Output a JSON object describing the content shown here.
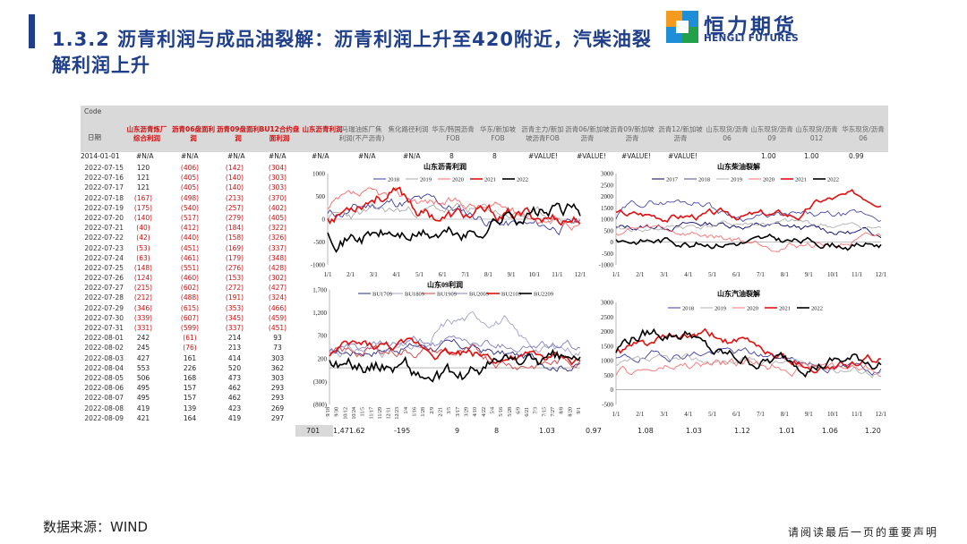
{
  "header": {
    "title": "1.3.2 沥青利润与成品油裂解：沥青利润上升至420附近，汽柴油裂解利润上升",
    "logo_cn": "恒力期货",
    "logo_en": "HENGLI FUTURES"
  },
  "table": {
    "code_label": "Code",
    "date_label": "日期",
    "columns": [
      {
        "label": "山东沥青炼厂综合利润",
        "color": "red"
      },
      {
        "label": "沥青06盘面利润",
        "color": "red"
      },
      {
        "label": "沥青09盘面利润",
        "color": "red"
      },
      {
        "label": "BU12合约盘面利润",
        "color": "red"
      },
      {
        "label": "山东沥青利润",
        "color": "red"
      },
      {
        "label": "马瑞油炼厂焦利润(不产沥青)",
        "color": "gray"
      },
      {
        "label": "焦化路径利润",
        "color": "gray"
      },
      {
        "label": "华东/韩国沥青FOB",
        "color": "gray"
      },
      {
        "label": "华东/新加坡FOB",
        "color": "gray"
      },
      {
        "label": "沥青主力/新加坡沥青FOB",
        "color": "gray"
      },
      {
        "label": "沥青06/新加坡沥青",
        "color": "gray"
      },
      {
        "label": "沥青09/新加坡沥青",
        "color": "gray"
      },
      {
        "label": "沥青12/新加坡沥青",
        "color": "gray"
      },
      {
        "label": "山东现货/沥青06",
        "color": "gray"
      },
      {
        "label": "山东现货/沥青09",
        "color": "gray"
      },
      {
        "label": "山东现货/沥青012",
        "color": "gray"
      },
      {
        "label": "华东现货/沥青06",
        "color": "gray"
      }
    ],
    "init_row": {
      "date": "2014-01-01",
      "values": [
        "#N/A",
        "#N/A",
        "#N/A",
        "#N/A",
        "#N/A",
        "#N/A",
        "#N/A",
        "8",
        "8",
        "#VALUE!",
        "#VALUE!",
        "#VALUE!",
        "#VALUE!",
        "1.00",
        "1.00",
        "0.99"
      ]
    },
    "rows": [
      {
        "date": "2022-07-15",
        "v": [
          "120",
          "(406)",
          "(142)",
          "(304)"
        ]
      },
      {
        "date": "2022-07-16",
        "v": [
          "121",
          "(405)",
          "(140)",
          "(303)"
        ]
      },
      {
        "date": "2022-07-17",
        "v": [
          "121",
          "(405)",
          "(140)",
          "(303)"
        ]
      },
      {
        "date": "2022-07-18",
        "v": [
          "(167)",
          "(498)",
          "(213)",
          "(370)"
        ]
      },
      {
        "date": "2022-07-19",
        "v": [
          "(175)",
          "(540)",
          "(257)",
          "(402)"
        ]
      },
      {
        "date": "2022-07-20",
        "v": [
          "(140)",
          "(517)",
          "(279)",
          "(405)"
        ]
      },
      {
        "date": "2022-07-21",
        "v": [
          "(40)",
          "(412)",
          "(184)",
          "(322)"
        ]
      },
      {
        "date": "2022-07-22",
        "v": [
          "(42)",
          "(440)",
          "(158)",
          "(326)"
        ]
      },
      {
        "date": "2022-07-23",
        "v": [
          "(53)",
          "(451)",
          "(169)",
          "(337)"
        ]
      },
      {
        "date": "2022-07-24",
        "v": [
          "(63)",
          "(461)",
          "(179)",
          "(348)"
        ]
      },
      {
        "date": "2022-07-25",
        "v": [
          "(148)",
          "(551)",
          "(276)",
          "(428)"
        ]
      },
      {
        "date": "2022-07-26",
        "v": [
          "(124)",
          "(460)",
          "(153)",
          "(302)"
        ]
      },
      {
        "date": "2022-07-27",
        "v": [
          "(215)",
          "(602)",
          "(272)",
          "(427)"
        ]
      },
      {
        "date": "2022-07-28",
        "v": [
          "(212)",
          "(488)",
          "(191)",
          "(324)"
        ]
      },
      {
        "date": "2022-07-29",
        "v": [
          "(346)",
          "(615)",
          "(353)",
          "(466)"
        ]
      },
      {
        "date": "2022-07-30",
        "v": [
          "(339)",
          "(607)",
          "(345)",
          "(459)"
        ]
      },
      {
        "date": "2022-07-31",
        "v": [
          "(331)",
          "(599)",
          "(337)",
          "(451)"
        ]
      },
      {
        "date": "2022-08-01",
        "v": [
          "242",
          "(61)",
          "214",
          "93"
        ]
      },
      {
        "date": "2022-08-02",
        "v": [
          "245",
          "(76)",
          "213",
          "73"
        ]
      },
      {
        "date": "2022-08-03",
        "v": [
          "427",
          "161",
          "414",
          "303"
        ]
      },
      {
        "date": "2022-08-04",
        "v": [
          "553",
          "226",
          "520",
          "362"
        ]
      },
      {
        "date": "2022-08-05",
        "v": [
          "506",
          "168",
          "473",
          "303"
        ]
      },
      {
        "date": "2022-08-06",
        "v": [
          "495",
          "157",
          "462",
          "293"
        ]
      },
      {
        "date": "2022-08-07",
        "v": [
          "495",
          "157",
          "462",
          "293"
        ]
      },
      {
        "date": "2022-08-08",
        "v": [
          "419",
          "139",
          "423",
          "269"
        ]
      },
      {
        "date": "2022-08-09",
        "v": [
          "421",
          "164",
          "419",
          "297"
        ]
      }
    ],
    "bottom_values": [
      "701",
      "1,471.62",
      "-195",
      "9",
      "8",
      "1.03",
      "0.97",
      "1.08",
      "1.03",
      "1.12",
      "1.01",
      "1.06",
      "1.20"
    ]
  },
  "chart_data": [
    {
      "type": "line",
      "title": "山东沥青利润",
      "legend": [
        "2018",
        "2019",
        "2020",
        "2021",
        "2022"
      ],
      "x_ticks": [
        "1/1",
        "2/1",
        "3/1",
        "4/1",
        "5/1",
        "6/1",
        "7/1",
        "8/1",
        "9/1",
        "10/1",
        "11/1",
        "12/1"
      ],
      "ylim": [
        -1000,
        1000
      ],
      "y_ticks": [
        "1000",
        "500",
        "0",
        "-500",
        "-1000"
      ],
      "colors": {
        "2018": "#3a3aa0",
        "2019": "#a8a8a8",
        "2020": "#ff6666",
        "2021": "#e01010",
        "2022": "#000000"
      }
    },
    {
      "type": "line",
      "title": "山东柴油裂解",
      "legend": [
        "2017",
        "2018",
        "2019",
        "2020",
        "2021",
        "2022"
      ],
      "x_ticks": [
        "1/1",
        "2/1",
        "3/1",
        "4/1",
        "5/1",
        "6/1",
        "7/1",
        "8/1",
        "9/1",
        "10/1",
        "11/1",
        "12/1"
      ],
      "ylim": [
        -1000,
        3000
      ],
      "y_ticks": [
        "3000",
        "2500",
        "2000",
        "1500",
        "1000",
        "500",
        "0",
        "-500",
        "-1000"
      ],
      "colors": {
        "2017": "#000066",
        "2018": "#4a4aa8",
        "2019": "#b0b0b0",
        "2020": "#ff7070",
        "2021": "#e01010",
        "2022": "#000000"
      }
    },
    {
      "type": "line",
      "title": "山东09利润",
      "legend": [
        "BU1709",
        "BU1809",
        "BU1909",
        "BU2009",
        "BU2109",
        "BU2209"
      ],
      "x_ticks": [
        "9/18",
        "9/30",
        "10/12",
        "10/24",
        "11/5",
        "11/17",
        "11/29",
        "12/11",
        "12/23",
        "1/4",
        "1/16",
        "1/28",
        "2/9",
        "2/21",
        "3/5",
        "3/17",
        "3/29",
        "4/10",
        "4/22",
        "5/4",
        "5/16",
        "5/28",
        "6/9",
        "6/21",
        "7/3",
        "7/15",
        "7/27",
        "8/8",
        "8/20",
        "9/1"
      ],
      "ylim": [
        -800,
        1700
      ],
      "y_ticks": [
        "1,700",
        "1,200",
        "700",
        "200",
        "(300)",
        "(800)"
      ],
      "colors": {
        "BU1709": "#2a2a80",
        "BU1809": "#a0a0d0",
        "BU1909": "#d04040",
        "BU2009": "#8080c0",
        "BU2109": "#e01010",
        "BU2209": "#000000"
      }
    },
    {
      "type": "line",
      "title": "山东汽油裂解",
      "legend": [
        "2018",
        "2019",
        "2020",
        "2021",
        "2022"
      ],
      "x_ticks": [
        "1/1",
        "2/1",
        "3/1",
        "4/1",
        "5/1",
        "6/1",
        "7/1",
        "8/1",
        "9/1",
        "10/1",
        "11/1",
        "12/1"
      ],
      "ylim": [
        -500,
        3000
      ],
      "y_ticks": [
        "3000",
        "2500",
        "2000",
        "1500",
        "1000",
        "500",
        "0",
        "-500"
      ],
      "colors": {
        "2018": "#3a3aa0",
        "2019": "#b0b0b0",
        "2020": "#ff7070",
        "2021": "#e01010",
        "2022": "#000000"
      }
    }
  ],
  "footer": {
    "source": "数据来源：WIND",
    "disclaimer": "请阅读最后一页的重要声明"
  }
}
